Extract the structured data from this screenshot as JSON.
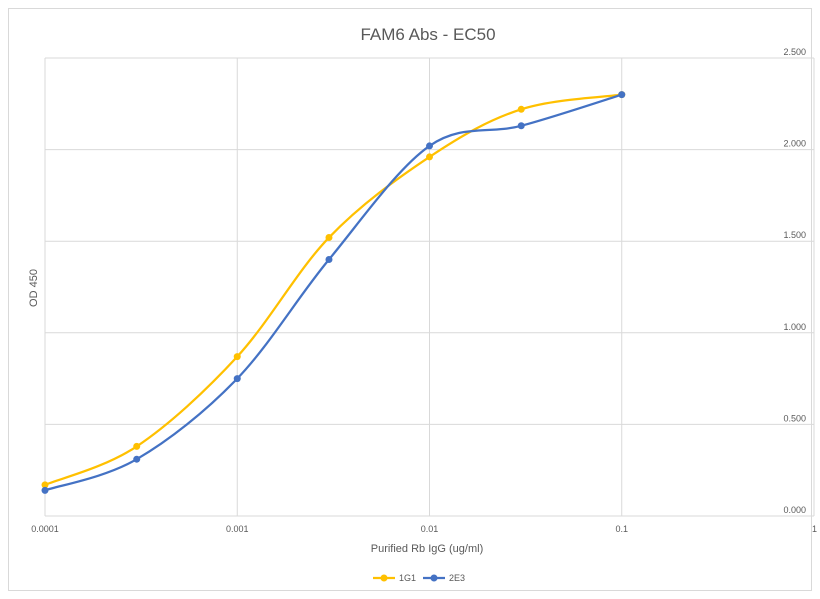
{
  "chart_data": {
    "type": "line",
    "title": "FAM6 Abs - EC50",
    "xlabel": "Purified Rb IgG (ug/ml)",
    "ylabel": "OD 450",
    "x_scale": "log",
    "xlim": [
      0.0001,
      1
    ],
    "x_tick_labels": [
      "0.0001",
      "0.001",
      "0.01",
      "0.1",
      "1"
    ],
    "ylim": [
      0,
      2.5
    ],
    "y_tick_labels": [
      "0.000",
      "0.500",
      "1.000",
      "1.500",
      "2.000",
      "2.500"
    ],
    "y_axis_side": "right",
    "grid": true,
    "legend_position": "bottom",
    "series": [
      {
        "name": "1G1",
        "color": "#FFC000",
        "x": [
          0.0001,
          0.0003,
          0.001,
          0.003,
          0.01,
          0.03,
          0.1
        ],
        "y": [
          0.17,
          0.38,
          0.87,
          1.52,
          1.96,
          2.22,
          2.3
        ]
      },
      {
        "name": "2E3",
        "color": "#4472C4",
        "x": [
          0.0001,
          0.0003,
          0.001,
          0.003,
          0.01,
          0.03,
          0.1
        ],
        "y": [
          0.14,
          0.31,
          0.75,
          1.4,
          2.02,
          2.13,
          2.3
        ]
      }
    ]
  }
}
